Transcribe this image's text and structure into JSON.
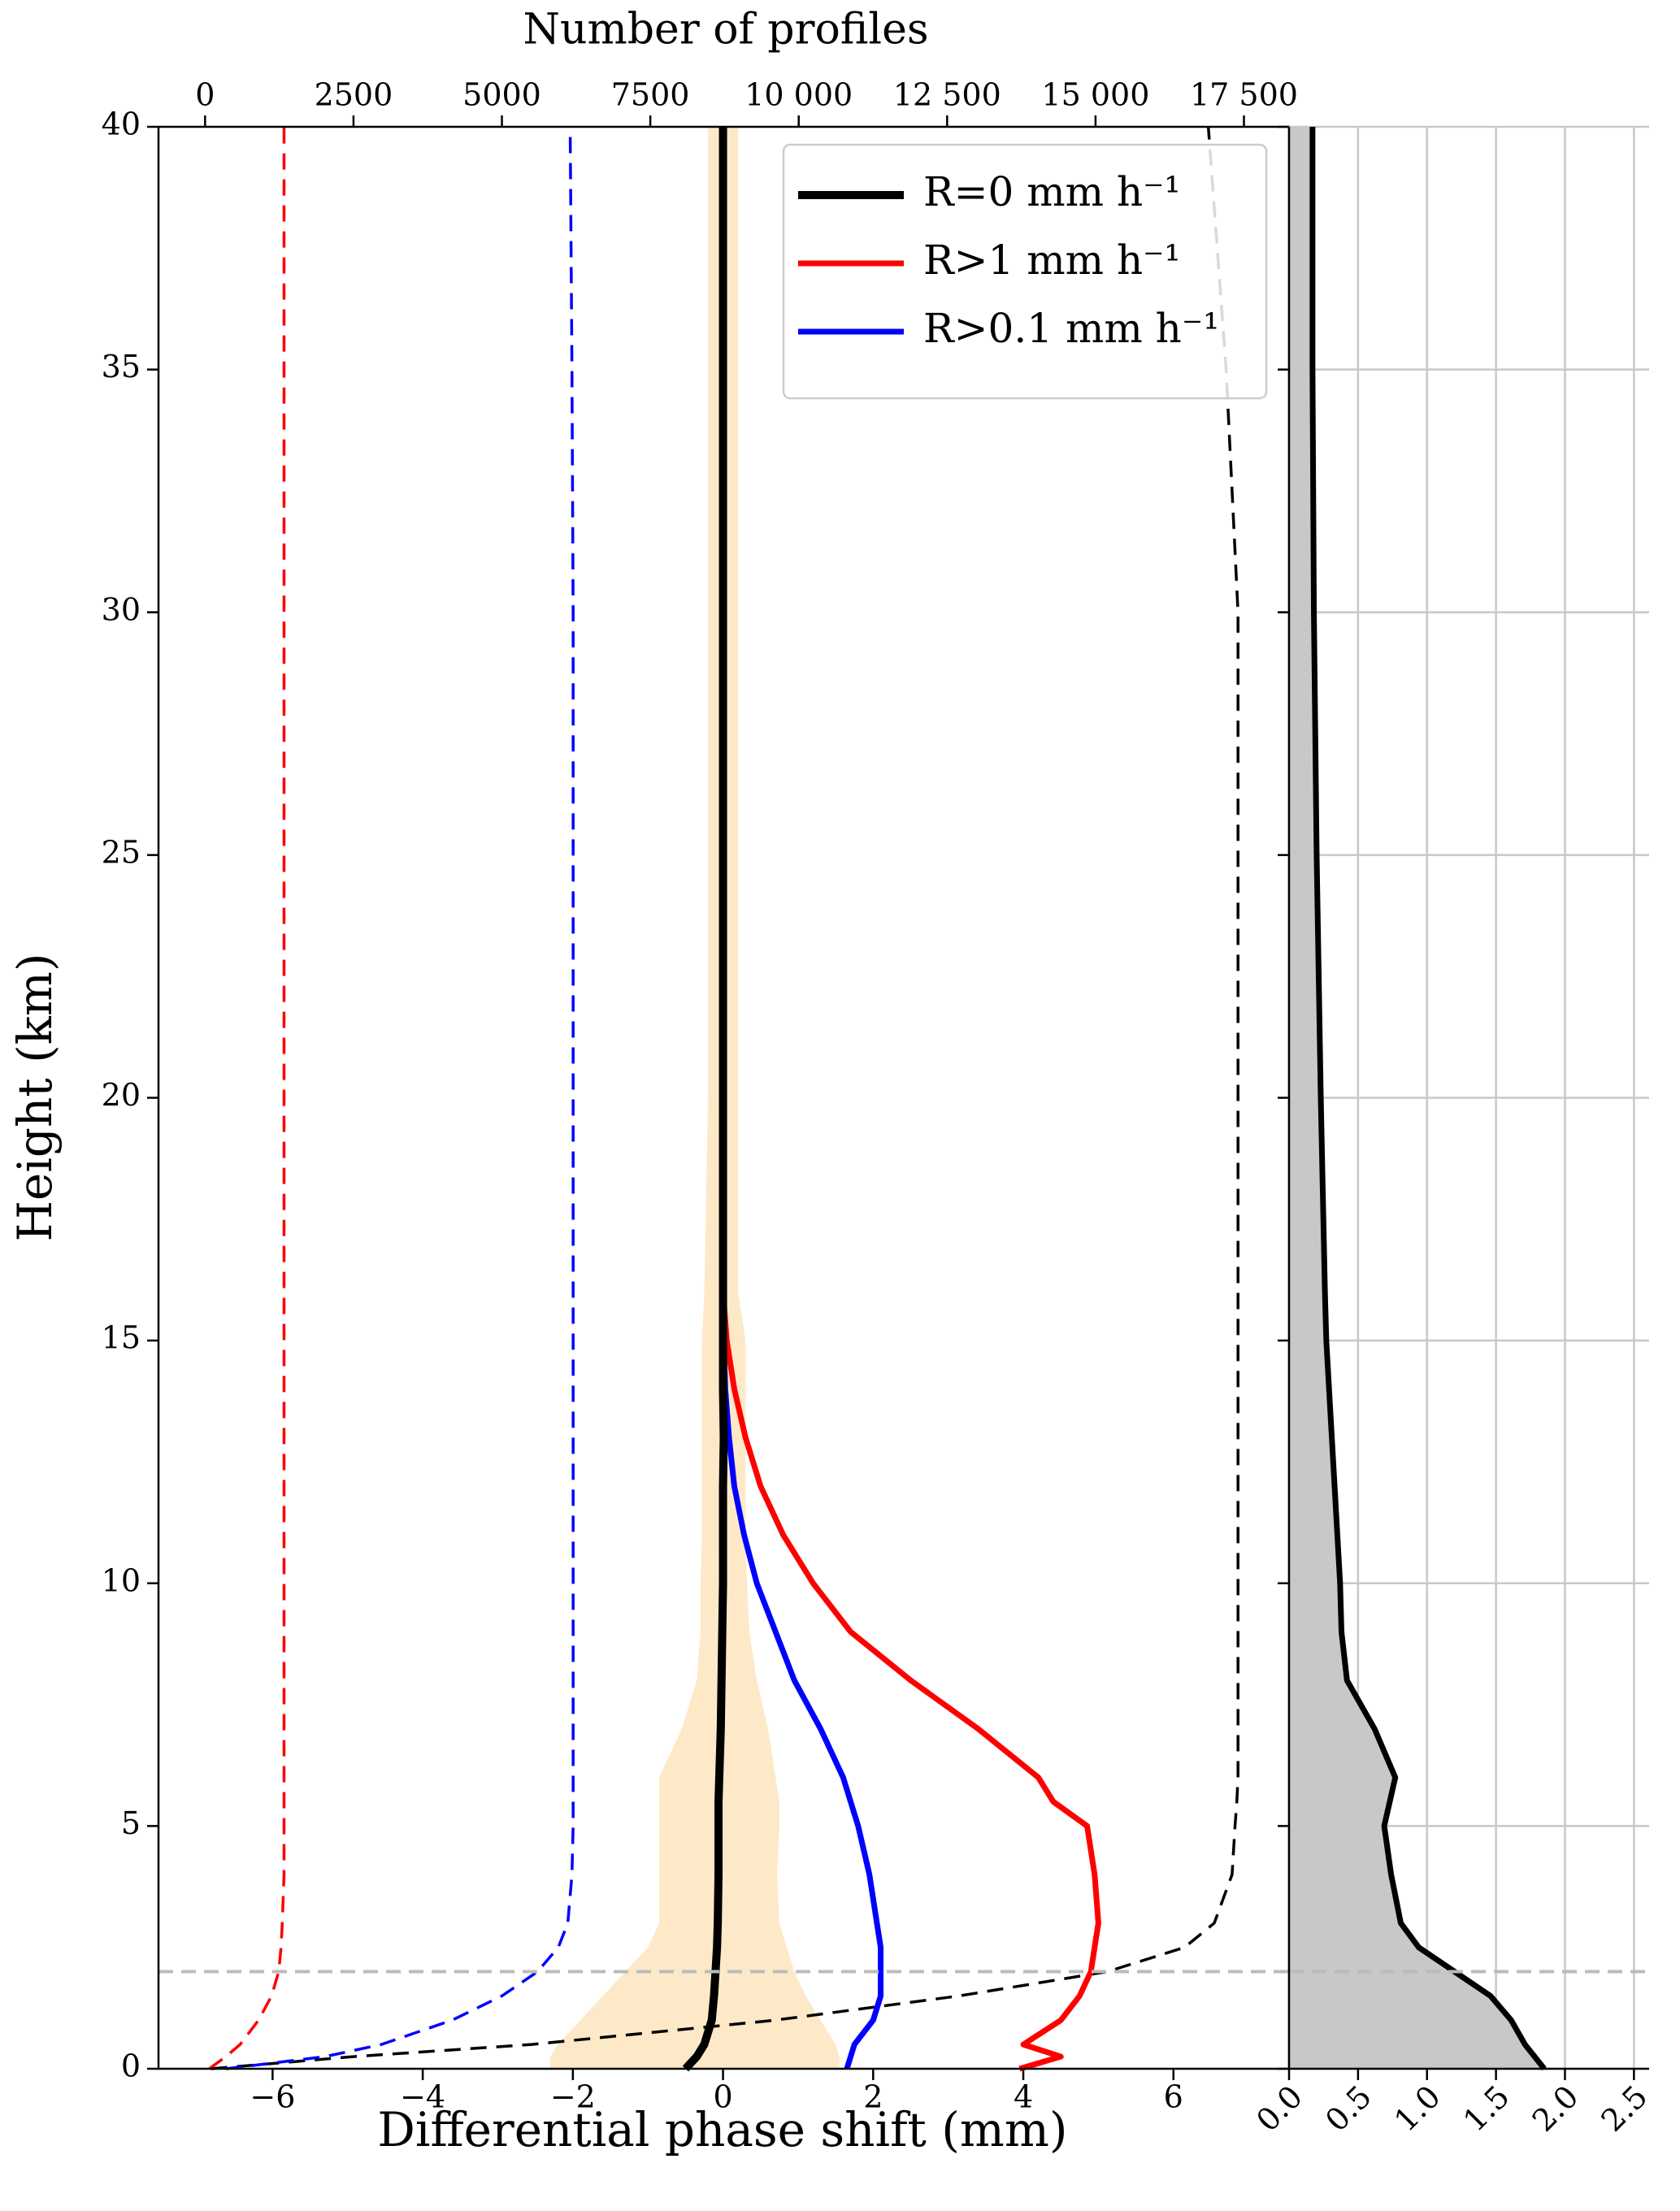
{
  "chart_data": [
    {
      "type": "line",
      "x_label": "Differential phase shift (mm)",
      "x2_label": "Number of profiles",
      "y_label": "Height (km)",
      "xlim": [
        -7.52,
        7.54
      ],
      "xticks": [
        {
          "value": -6,
          "label": "−6"
        },
        {
          "value": -4,
          "label": "−4"
        },
        {
          "value": -2,
          "label": "−2"
        },
        0,
        2,
        4,
        6
      ],
      "x2lim": [
        -785,
        18260
      ],
      "x2ticks": [
        0,
        2500,
        5000,
        7500,
        {
          "value": 10000,
          "label": "10 000"
        },
        {
          "value": 12500,
          "label": "12 500"
        },
        {
          "value": 15000,
          "label": "15 000"
        },
        {
          "value": 17500,
          "label": "17 500"
        }
      ],
      "ylim": [
        0,
        40
      ],
      "yticks": [
        0,
        5,
        10,
        15,
        20,
        25,
        30,
        35,
        40
      ],
      "legend": "upper right",
      "hline": 2,
      "y": [
        0,
        0.25,
        0.5,
        1,
        1.5,
        2,
        2.5,
        3,
        4,
        5,
        5.5,
        6,
        7,
        8,
        9,
        10,
        11,
        12,
        13,
        14,
        15,
        16,
        20,
        25,
        30,
        35,
        40
      ],
      "band": {
        "color": "#fde9c8",
        "lower": [
          -2.3,
          -2.3,
          -2.2,
          -1.9,
          -1.6,
          -1.3,
          -1.0,
          -0.85,
          -0.85,
          -0.85,
          -0.85,
          -0.85,
          -0.55,
          -0.35,
          -0.3,
          -0.3,
          -0.28,
          -0.28,
          -0.28,
          -0.28,
          -0.28,
          -0.25,
          -0.2,
          -0.2,
          -0.2,
          -0.2,
          -0.2
        ],
        "upper": [
          1.55,
          1.55,
          1.5,
          1.3,
          1.1,
          0.95,
          0.85,
          0.75,
          0.72,
          0.75,
          0.75,
          0.7,
          0.6,
          0.45,
          0.35,
          0.32,
          0.3,
          0.3,
          0.3,
          0.3,
          0.3,
          0.2,
          0.2,
          0.2,
          0.2,
          0.2,
          0.2
        ]
      },
      "series": [
        {
          "axis": "x2",
          "linestyle": "dashed",
          "color": "#000000",
          "values": [
            100,
            2500,
            5500,
            9600,
            12700,
            15200,
            16500,
            17000,
            17300,
            17350,
            17380,
            17400,
            17400,
            17400,
            17400,
            17400,
            17400,
            17400,
            17400,
            17400,
            17400,
            17400,
            17400,
            17400,
            17400,
            17200,
            16900
          ]
        },
        {
          "axis": "x2",
          "linestyle": "dashed",
          "color": "#0000ff",
          "values": [
            350,
            2020,
            2970,
            4160,
            5000,
            5600,
            5950,
            6110,
            6180,
            6200,
            6200,
            6200,
            6200,
            6200,
            6200,
            6200,
            6200,
            6200,
            6200,
            6200,
            6200,
            6200,
            6200,
            6200,
            6200,
            6180,
            6150
          ]
        },
        {
          "axis": "x2",
          "linestyle": "dashed",
          "color": "#ff0000",
          "values": [
            70,
            350,
            590,
            900,
            1120,
            1240,
            1280,
            1300,
            1330,
            1330,
            1330,
            1330,
            1330,
            1330,
            1330,
            1330,
            1330,
            1330,
            1330,
            1330,
            1330,
            1330,
            1330,
            1330,
            1330,
            1330,
            1330
          ]
        },
        {
          "name": "R>0.1 mm h⁻¹",
          "color": "#0000ff",
          "values": [
            1.65,
            1.7,
            1.75,
            2.0,
            2.1,
            2.1,
            2.1,
            2.05,
            1.95,
            1.8,
            1.7,
            1.6,
            1.3,
            0.95,
            0.7,
            0.45,
            0.28,
            0.15,
            0.08,
            0.03,
            0.01,
            0,
            0,
            0,
            0,
            0,
            0
          ]
        },
        {
          "name": "R>1 mm h⁻¹",
          "color": "#ff0000",
          "values": [
            3.95,
            4.5,
            4.0,
            4.5,
            4.75,
            4.9,
            4.95,
            5.0,
            4.95,
            4.85,
            4.4,
            4.2,
            3.4,
            2.5,
            1.7,
            1.2,
            0.8,
            0.5,
            0.3,
            0.15,
            0.05,
            0,
            0,
            0,
            0,
            0,
            0
          ]
        },
        {
          "name": "R=0 mm h⁻¹",
          "color": "#000000",
          "values": [
            -0.5,
            -0.35,
            -0.25,
            -0.15,
            -0.12,
            -0.1,
            -0.08,
            -0.07,
            -0.06,
            -0.06,
            -0.06,
            -0.05,
            -0.03,
            -0.02,
            -0.01,
            0,
            0,
            0,
            0.01,
            0,
            0,
            0,
            0,
            0,
            0,
            0,
            0
          ]
        }
      ]
    },
    {
      "type": "area",
      "xlim": [
        0,
        2.61
      ],
      "xticks": [
        {
          "value": 0,
          "label": "0.0"
        },
        {
          "value": 0.5,
          "label": "0.5"
        },
        {
          "value": 1,
          "label": "1.0"
        },
        {
          "value": 1.5,
          "label": "1.5"
        },
        {
          "value": 2,
          "label": "2.0"
        },
        {
          "value": 2.5,
          "label": "2.5"
        }
      ],
      "ylim": [
        0,
        40
      ],
      "yticks": [
        0,
        5,
        10,
        15,
        20,
        25,
        30,
        35,
        40
      ],
      "grid": true,
      "hline": 2,
      "color": "#c8c8c8",
      "line_color": "#000000",
      "y": [
        0,
        0.25,
        0.5,
        1,
        1.5,
        2,
        2.5,
        3,
        4,
        5,
        5.5,
        6,
        7,
        8,
        9,
        10,
        11,
        12,
        13,
        14,
        15,
        16,
        20,
        25,
        30,
        35,
        40
      ],
      "values": [
        1.85,
        1.78,
        1.71,
        1.61,
        1.46,
        1.2,
        0.94,
        0.81,
        0.74,
        0.69,
        0.73,
        0.77,
        0.62,
        0.42,
        0.38,
        0.37,
        0.35,
        0.33,
        0.31,
        0.29,
        0.27,
        0.26,
        0.23,
        0.2,
        0.18,
        0.17,
        0.17
      ]
    }
  ]
}
